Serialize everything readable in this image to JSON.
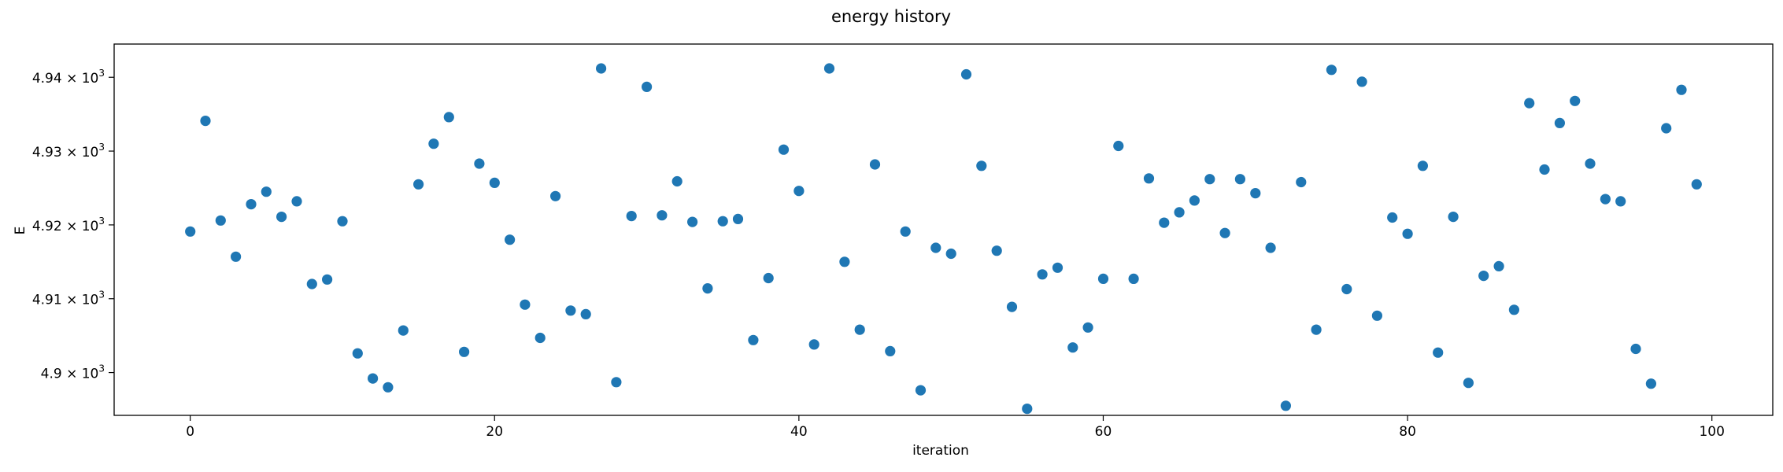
{
  "chart_data": {
    "type": "scatter",
    "title": "energy history",
    "xlabel": "iteration",
    "ylabel": "E",
    "xlim": [
      -5,
      104
    ],
    "ylim": [
      4894.2,
      4944.5
    ],
    "y_scale": "log",
    "xticks": [
      0,
      20,
      40,
      60,
      80,
      100
    ],
    "yticks": [
      {
        "value": 4900,
        "mantissa": "4.9",
        "times": "×",
        "base": "10",
        "exponent": "3"
      },
      {
        "value": 4910,
        "mantissa": "4.91",
        "times": "×",
        "base": "10",
        "exponent": "3"
      },
      {
        "value": 4920,
        "mantissa": "4.92",
        "times": "×",
        "base": "10",
        "exponent": "3"
      },
      {
        "value": 4930,
        "mantissa": "4.93",
        "times": "×",
        "base": "10",
        "exponent": "3"
      },
      {
        "value": 4940,
        "mantissa": "4.94",
        "times": "×",
        "base": "10",
        "exponent": "3"
      }
    ],
    "grid": false,
    "marker_color": "#1f77b4",
    "x": [
      0,
      1,
      2,
      3,
      4,
      5,
      6,
      7,
      8,
      9,
      10,
      11,
      12,
      13,
      14,
      15,
      16,
      17,
      18,
      19,
      20,
      21,
      22,
      23,
      24,
      25,
      26,
      27,
      28,
      29,
      30,
      31,
      32,
      33,
      34,
      35,
      36,
      37,
      38,
      39,
      40,
      41,
      42,
      43,
      44,
      45,
      46,
      47,
      48,
      49,
      50,
      51,
      52,
      53,
      54,
      55,
      56,
      57,
      58,
      59,
      60,
      61,
      62,
      63,
      64,
      65,
      66,
      67,
      68,
      69,
      70,
      71,
      72,
      73,
      74,
      75,
      76,
      77,
      78,
      79,
      80,
      81,
      82,
      83,
      84,
      85,
      86,
      87,
      88,
      89,
      90,
      91,
      92,
      93,
      94,
      95,
      96,
      97,
      98,
      99
    ],
    "y": [
      4919.1,
      4934.1,
      4920.6,
      4915.7,
      4922.8,
      4924.5,
      4921.1,
      4923.2,
      4912.0,
      4912.6,
      4920.5,
      4902.6,
      4899.2,
      4898.0,
      4905.7,
      4925.5,
      4931.0,
      4934.6,
      4902.8,
      4928.3,
      4925.7,
      4918.0,
      4909.2,
      4904.7,
      4923.9,
      4908.4,
      4907.9,
      4941.2,
      4898.7,
      4921.2,
      4938.7,
      4921.3,
      4925.9,
      4920.4,
      4911.4,
      4920.5,
      4920.8,
      4904.4,
      4912.8,
      4930.2,
      4924.6,
      4903.8,
      4941.2,
      4915.0,
      4905.8,
      4928.2,
      4902.9,
      4919.1,
      4897.6,
      4916.9,
      4916.1,
      4940.4,
      4928.0,
      4916.5,
      4908.9,
      4895.1,
      4913.3,
      4914.2,
      4903.4,
      4906.1,
      4912.7,
      4930.7,
      4912.7,
      4926.3,
      4920.3,
      4921.7,
      4923.3,
      4926.2,
      4918.9,
      4926.2,
      4924.3,
      4916.9,
      4895.5,
      4925.8,
      4905.8,
      4941.0,
      4911.3,
      4939.4,
      4907.7,
      4921.0,
      4918.8,
      4928.0,
      4902.7,
      4921.1,
      4898.6,
      4913.1,
      4914.4,
      4908.5,
      4936.5,
      4927.5,
      4933.8,
      4936.8,
      4928.3,
      4923.5,
      4923.2,
      4903.2,
      4898.5,
      4933.1,
      4938.3,
      4925.5
    ]
  }
}
